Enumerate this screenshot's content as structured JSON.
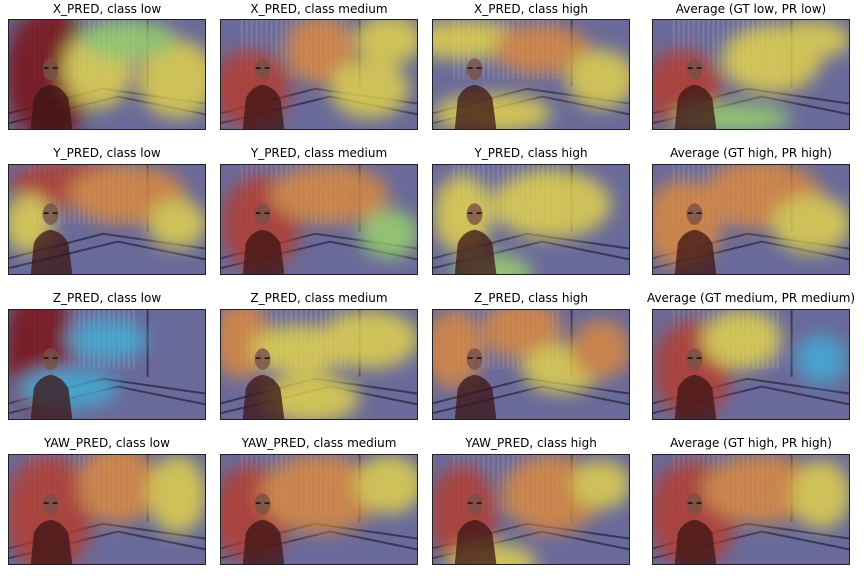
{
  "panels": [
    {
      "title": "X_PRED, class low"
    },
    {
      "title": "X_PRED, class medium"
    },
    {
      "title": "X_PRED, class high"
    },
    {
      "title": "Average (GT low, PR low)"
    },
    {
      "title": "Y_PRED, class low"
    },
    {
      "title": "Y_PRED, class medium"
    },
    {
      "title": "Y_PRED, class high"
    },
    {
      "title": "Average (GT high, PR high)"
    },
    {
      "title": "Z_PRED, class low"
    },
    {
      "title": "Z_PRED, class medium"
    },
    {
      "title": "Z_PRED, class high"
    },
    {
      "title": "Average (GT medium, PR medium)"
    },
    {
      "title": "YAW_PRED, class low"
    },
    {
      "title": "YAW_PRED, class medium"
    },
    {
      "title": "YAW_PRED, class high"
    },
    {
      "title": "Average (GT high, PR high)"
    }
  ],
  "colormap": [
    "#30308a",
    "#3a6ad0",
    "#3fb0d8",
    "#9ed86a",
    "#e8d84a",
    "#e08a3a",
    "#b83a2a",
    "#7a1010"
  ]
}
